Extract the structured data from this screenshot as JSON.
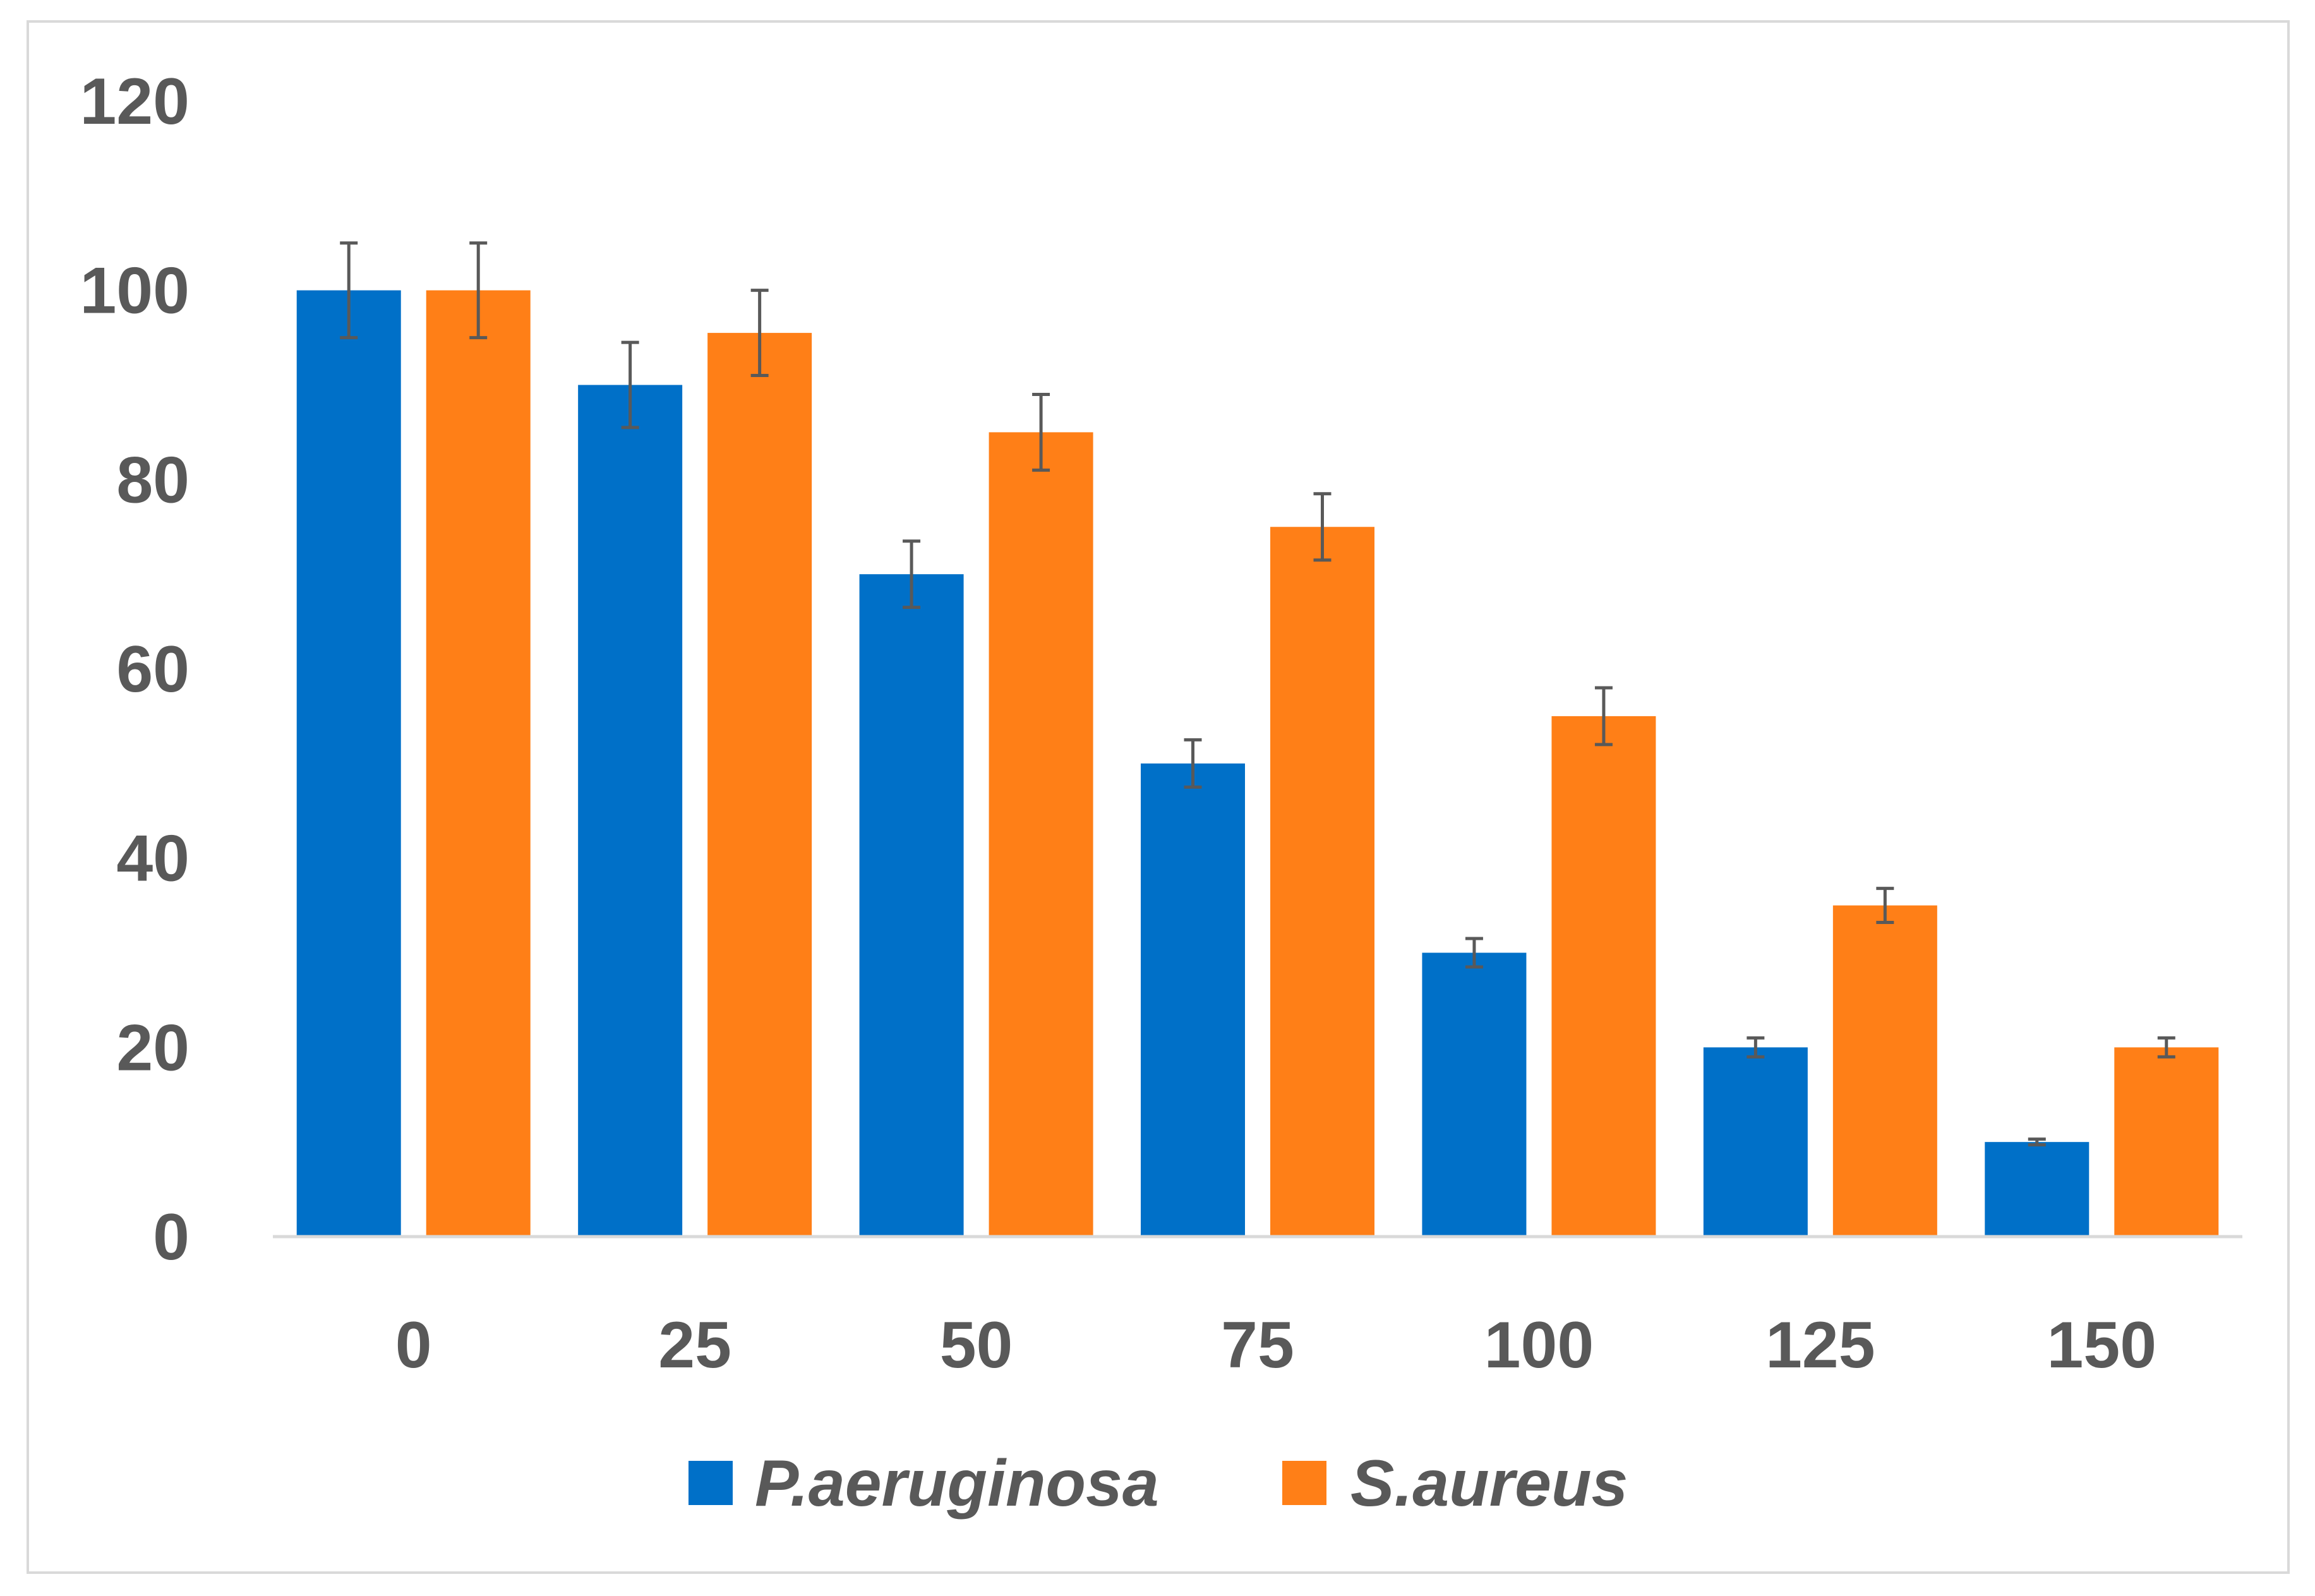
{
  "chart_data": {
    "type": "bar",
    "categories": [
      "0",
      "25",
      "50",
      "75",
      "100",
      "125",
      "150"
    ],
    "series": [
      {
        "name": "P.aeruginosa",
        "color": "#0070c8",
        "values": [
          100,
          90,
          70,
          50,
          30,
          20,
          10
        ],
        "errors": [
          5,
          4.5,
          3.5,
          2.5,
          1.5,
          1,
          0.3
        ]
      },
      {
        "name": "S.aureus",
        "color": "#ff7f17",
        "values": [
          100,
          95.5,
          85,
          75,
          55,
          35,
          20
        ],
        "errors": [
          5,
          4.5,
          4,
          3.5,
          3,
          1.8,
          1
        ]
      }
    ],
    "ylim": [
      0,
      120
    ],
    "yticks": [
      "0",
      "20",
      "40",
      "60",
      "80",
      "100",
      "120"
    ],
    "grid": false,
    "legend": "bottom",
    "error_bar_color": "#595959",
    "axis_color": "#d9d9d9",
    "title": "",
    "xlabel": "",
    "ylabel": ""
  }
}
